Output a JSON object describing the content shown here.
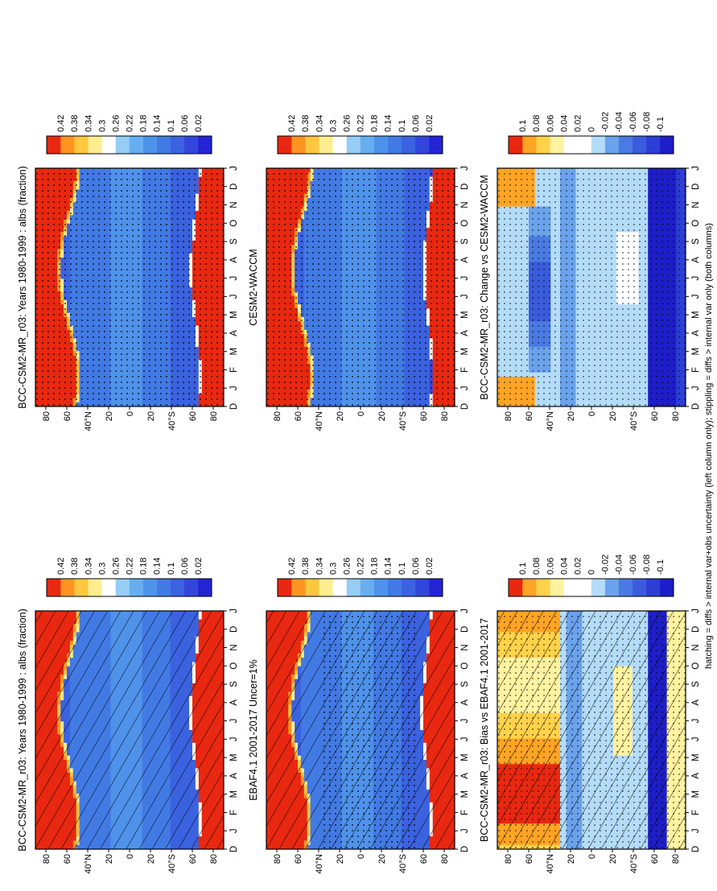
{
  "figure": {
    "footnote": "hatching = diffs > internal var+obs uncertainty (left column only); stippling = diffs > internal var only (both columns)"
  },
  "chart_data": [
    {
      "type": "heatmap",
      "panel": "top-left",
      "title": "BCC-CSM2-MR_r03: Years 1980-1999 : albs (fraction)",
      "months": [
        "D",
        "J",
        "F",
        "M",
        "A",
        "M",
        "J",
        "J",
        "A",
        "S",
        "O",
        "N",
        "D",
        "J"
      ],
      "lat_labels": [
        "80",
        "60",
        "40°N",
        "20",
        "0",
        "20",
        "40°S",
        "60",
        "80"
      ],
      "colorbar_labels": [
        "0.02",
        "0.06",
        "0.1",
        "0.14",
        "0.18",
        "0.22",
        "0.26",
        "0.3",
        "0.34",
        "0.38",
        "0.42"
      ],
      "scale": "albedo",
      "hatching": true,
      "stippling": false
    },
    {
      "type": "heatmap",
      "panel": "top-right",
      "title": "BCC-CSM2-MR_r03: Years 1980-1999 : albs (fraction)",
      "months": [
        "D",
        "J",
        "F",
        "M",
        "A",
        "M",
        "J",
        "J",
        "A",
        "S",
        "O",
        "N",
        "D",
        "J"
      ],
      "lat_labels": [
        "80",
        "60",
        "40°N",
        "20",
        "0",
        "20",
        "40°S",
        "60",
        "80"
      ],
      "colorbar_labels": [
        "0.02",
        "0.06",
        "0.1",
        "0.14",
        "0.18",
        "0.22",
        "0.26",
        "0.3",
        "0.34",
        "0.38",
        "0.42"
      ],
      "scale": "albedo",
      "hatching": false,
      "stippling": true
    },
    {
      "type": "heatmap",
      "panel": "middle-left",
      "title": "EBAF4.1 2001-2017 Uncer=1%",
      "months": [
        "D",
        "J",
        "F",
        "M",
        "A",
        "M",
        "J",
        "J",
        "A",
        "S",
        "O",
        "N",
        "D",
        "J"
      ],
      "lat_labels": [
        "80",
        "60",
        "40°N",
        "20",
        "0",
        "20",
        "40°S",
        "60",
        "80"
      ],
      "colorbar_labels": [
        "0.02",
        "0.06",
        "0.1",
        "0.14",
        "0.18",
        "0.22",
        "0.26",
        "0.3",
        "0.34",
        "0.38",
        "0.42"
      ],
      "scale": "albedo",
      "hatching": true,
      "stippling": true
    },
    {
      "type": "heatmap",
      "panel": "middle-right",
      "title": "CESM2-WACCM",
      "months": [
        "D",
        "J",
        "F",
        "M",
        "A",
        "M",
        "J",
        "J",
        "A",
        "S",
        "O",
        "N",
        "D",
        "J"
      ],
      "lat_labels": [
        "80",
        "60",
        "40°N",
        "20",
        "0",
        "20",
        "40°S",
        "60",
        "80"
      ],
      "colorbar_labels": [
        "0.02",
        "0.06",
        "0.1",
        "0.14",
        "0.18",
        "0.22",
        "0.26",
        "0.3",
        "0.34",
        "0.38",
        "0.42"
      ],
      "scale": "albedo",
      "hatching": false,
      "stippling": true
    },
    {
      "type": "heatmap",
      "panel": "bottom-left",
      "title": "BCC-CSM2-MR_r03: Bias vs EBAF4.1 2001-2017",
      "months": [
        "D",
        "J",
        "F",
        "M",
        "A",
        "M",
        "J",
        "J",
        "A",
        "S",
        "O",
        "N",
        "D",
        "J"
      ],
      "lat_labels": [
        "80",
        "60",
        "40°N",
        "20",
        "0",
        "20",
        "40°S",
        "60",
        "80"
      ],
      "colorbar_labels": [
        "-0.1",
        "-0.08",
        "-0.06",
        "-0.04",
        "-0.02",
        "0",
        "0.02",
        "0.04",
        "0.06",
        "0.08",
        "0.1"
      ],
      "scale": "diff",
      "hatching": true,
      "stippling": true
    },
    {
      "type": "heatmap",
      "panel": "bottom-right",
      "title": "BCC-CSM2-MR_r03: Change vs CESM2-WACCM",
      "months": [
        "D",
        "J",
        "F",
        "M",
        "A",
        "M",
        "J",
        "J",
        "A",
        "S",
        "O",
        "N",
        "D",
        "J"
      ],
      "lat_labels": [
        "80",
        "60",
        "40°N",
        "20",
        "0",
        "20",
        "40°S",
        "60",
        "80"
      ],
      "colorbar_labels": [
        "-0.1",
        "-0.08",
        "-0.06",
        "-0.04",
        "-0.02",
        "0",
        "0.02",
        "0.04",
        "0.06",
        "0.08",
        "0.1"
      ],
      "scale": "diff",
      "hatching": false,
      "stippling": true
    }
  ]
}
